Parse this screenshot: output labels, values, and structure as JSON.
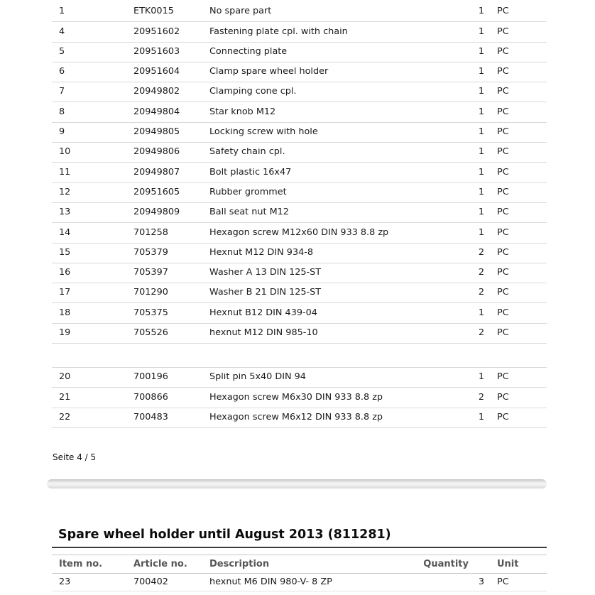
{
  "document": {
    "page4": {
      "rows_group1": [
        {
          "item": "1",
          "article": "ETK0015",
          "desc": "No spare part",
          "qty": "1",
          "unit": "PC"
        },
        {
          "item": "4",
          "article": "20951602",
          "desc": "Fastening plate cpl. with chain",
          "qty": "1",
          "unit": "PC"
        },
        {
          "item": "5",
          "article": "20951603",
          "desc": "Connecting plate",
          "qty": "1",
          "unit": "PC"
        },
        {
          "item": "6",
          "article": "20951604",
          "desc": "Clamp spare wheel holder",
          "qty": "1",
          "unit": "PC"
        },
        {
          "item": "7",
          "article": "20949802",
          "desc": "Clamping cone cpl.",
          "qty": "1",
          "unit": "PC"
        },
        {
          "item": "8",
          "article": "20949804",
          "desc": "Star knob M12",
          "qty": "1",
          "unit": "PC"
        },
        {
          "item": "9",
          "article": "20949805",
          "desc": "Locking screw with hole",
          "qty": "1",
          "unit": "PC"
        },
        {
          "item": "10",
          "article": "20949806",
          "desc": "Safety chain cpl.",
          "qty": "1",
          "unit": "PC"
        },
        {
          "item": "11",
          "article": "20949807",
          "desc": "Bolt plastic 16x47",
          "qty": "1",
          "unit": "PC"
        },
        {
          "item": "12",
          "article": "20951605",
          "desc": "Rubber grommet",
          "qty": "1",
          "unit": "PC"
        },
        {
          "item": "13",
          "article": "20949809",
          "desc": "Ball seat nut M12",
          "qty": "1",
          "unit": "PC"
        },
        {
          "item": "14",
          "article": "701258",
          "desc": "Hexagon screw M12x60 DIN 933 8.8 zp",
          "qty": "1",
          "unit": "PC"
        },
        {
          "item": "15",
          "article": "705379",
          "desc": "Hexnut M12 DIN 934-8",
          "qty": "2",
          "unit": "PC"
        },
        {
          "item": "16",
          "article": "705397",
          "desc": "Washer A 13 DIN 125-ST",
          "qty": "2",
          "unit": "PC"
        },
        {
          "item": "17",
          "article": "701290",
          "desc": "Washer B 21 DIN 125-ST",
          "qty": "2",
          "unit": "PC"
        },
        {
          "item": "18",
          "article": "705375",
          "desc": "Hexnut B12 DIN 439-04",
          "qty": "1",
          "unit": "PC"
        },
        {
          "item": "19",
          "article": "705526",
          "desc": "hexnut M12 DIN 985-10",
          "qty": "2",
          "unit": "PC"
        }
      ],
      "rows_group2": [
        {
          "item": "20",
          "article": "700196",
          "desc": "Split pin 5x40 DIN 94",
          "qty": "1",
          "unit": "PC"
        },
        {
          "item": "21",
          "article": "700866",
          "desc": "Hexagon screw M6x30 DIN 933 8.8 zp",
          "qty": "2",
          "unit": "PC"
        },
        {
          "item": "22",
          "article": "700483",
          "desc": "Hexagon screw M6x12 DIN 933 8.8 zp",
          "qty": "1",
          "unit": "PC"
        }
      ],
      "footer": "Seite 4 / 5"
    },
    "page5": {
      "section_title": "Spare wheel holder until August 2013 (811281)",
      "table_headers": {
        "item": "Item no.",
        "article": "Article no.",
        "description": "Description",
        "quantity": "Quantity",
        "unit": "Unit"
      },
      "rows": [
        {
          "item": "23",
          "article": "700402",
          "desc": "hexnut M6 DIN 980-V- 8 ZP",
          "qty": "3",
          "unit": "PC"
        }
      ]
    },
    "colors": {
      "row_border": "#d9d9d9",
      "header_border": "#c7c7c7",
      "header_text": "#565656",
      "heading_underline": "#3c3c3c",
      "body_text": "#1a1a1a",
      "divider_gray": "#d7d7d7"
    }
  }
}
